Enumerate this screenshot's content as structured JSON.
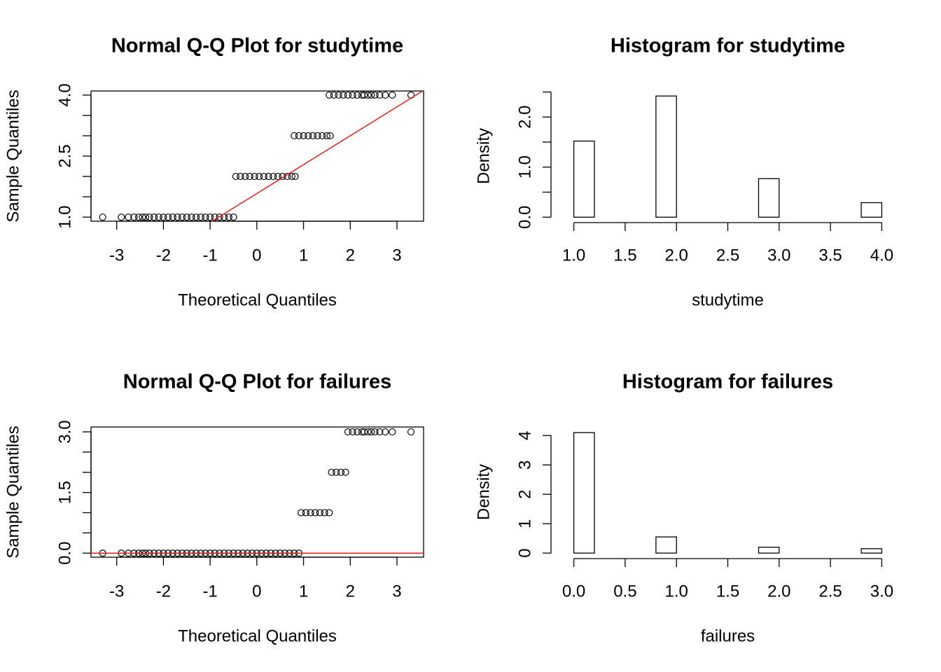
{
  "chart_data": [
    {
      "type": "qq",
      "title": "Normal Q-Q Plot for  studytime",
      "xlabel": "Theoretical Quantiles",
      "ylabel": "Sample Quantiles",
      "color": "#000000",
      "x": [
        -3.3,
        -2.9,
        -2.75,
        -2.63,
        -2.53,
        -2.45,
        -2.38,
        -2.3,
        -2.2,
        -2.1,
        -2.0,
        -1.9,
        -1.8,
        -1.7,
        -1.6,
        -1.5,
        -1.4,
        -1.3,
        -1.2,
        -1.1,
        -1.0,
        -0.9,
        -0.8,
        -0.7,
        -0.6,
        -0.5,
        -0.45,
        -0.35,
        -0.25,
        -0.15,
        -0.05,
        0.05,
        0.15,
        0.25,
        0.35,
        0.45,
        0.55,
        0.65,
        0.75,
        0.82,
        0.8,
        0.9,
        1.0,
        1.1,
        1.2,
        1.3,
        1.4,
        1.5,
        1.57,
        1.55,
        1.65,
        1.75,
        1.85,
        1.95,
        2.05,
        2.15,
        2.25,
        2.3,
        2.38,
        2.45,
        2.53,
        2.63,
        2.75,
        2.9,
        3.3
      ],
      "values": [
        1,
        1,
        1,
        1,
        1,
        1,
        1,
        1,
        1,
        1,
        1,
        1,
        1,
        1,
        1,
        1,
        1,
        1,
        1,
        1,
        1,
        1,
        1,
        1,
        1,
        1,
        2,
        2,
        2,
        2,
        2,
        2,
        2,
        2,
        2,
        2,
        2,
        2,
        2,
        2,
        3,
        3,
        3,
        3,
        3,
        3,
        3,
        3,
        3,
        4,
        4,
        4,
        4,
        4,
        4,
        4,
        4,
        4,
        4,
        4,
        4,
        4,
        4,
        4,
        4
      ],
      "qq_line": {
        "intercept": 1.58,
        "slope": 0.71,
        "color": "#dd2020"
      },
      "xlim": [
        -3.55,
        3.57
      ],
      "ylim": [
        0.9,
        4.1
      ],
      "xticks": [
        -3,
        -2,
        -1,
        0,
        1,
        2,
        3
      ],
      "yticks": [
        {
          "value": 1,
          "label": "1.0"
        },
        {
          "value": 1.5,
          "label": null
        },
        {
          "value": 2,
          "label": null
        },
        {
          "value": 2.5,
          "label": "2.5"
        },
        {
          "value": 3,
          "label": null
        },
        {
          "value": 3.5,
          "label": null
        },
        {
          "value": 4,
          "label": "4.0"
        }
      ]
    },
    {
      "type": "histogram",
      "title": "Histogram for  studytime",
      "xlabel": "studytime",
      "ylabel": "Density",
      "color": "#000000",
      "bins": [
        1.0,
        1.2,
        1.4,
        1.6,
        1.8,
        2.0,
        2.2,
        2.4,
        2.6,
        2.8,
        3.0,
        3.2,
        3.4,
        3.6,
        3.8,
        4.0
      ],
      "values": [
        1.52,
        0,
        0,
        0,
        2.42,
        0,
        0,
        0,
        0,
        0.77,
        0,
        0,
        0,
        0,
        0.29
      ],
      "xlim": [
        0.88,
        4.12
      ],
      "ylim": [
        -0.08,
        2.52
      ],
      "xticks": [
        {
          "value": 1,
          "label": "1.0"
        },
        1.5,
        {
          "value": 2,
          "label": "2.0"
        },
        2.5,
        {
          "value": 3,
          "label": "3.0"
        },
        3.5,
        {
          "value": 4,
          "label": "4.0"
        }
      ],
      "yticks": [
        {
          "value": 0,
          "label": "0.0"
        },
        {
          "value": 0.5,
          "label": null
        },
        {
          "value": 1,
          "label": "1.0"
        },
        {
          "value": 1.5,
          "label": null
        },
        {
          "value": 2,
          "label": "2.0"
        },
        {
          "value": 2.5,
          "label": null
        }
      ]
    },
    {
      "type": "qq",
      "title": "Normal Q-Q Plot for  failures",
      "xlabel": "Theoretical Quantiles",
      "ylabel": "Sample Quantiles",
      "color": "#000000",
      "x": [
        -3.3,
        -2.9,
        -2.75,
        -2.63,
        -2.53,
        -2.45,
        -2.38,
        -2.3,
        -2.2,
        -2.1,
        -2.0,
        -1.9,
        -1.8,
        -1.7,
        -1.6,
        -1.5,
        -1.4,
        -1.3,
        -1.2,
        -1.1,
        -1.0,
        -0.9,
        -0.8,
        -0.7,
        -0.6,
        -0.5,
        -0.4,
        -0.3,
        -0.2,
        -0.1,
        0,
        0.1,
        0.2,
        0.3,
        0.4,
        0.5,
        0.6,
        0.7,
        0.8,
        0.9,
        0.95,
        1.05,
        1.15,
        1.25,
        1.35,
        1.45,
        1.55,
        1.6,
        1.7,
        1.8,
        1.9,
        1.95,
        2.05,
        2.15,
        2.25,
        2.3,
        2.38,
        2.45,
        2.53,
        2.63,
        2.75,
        2.9,
        3.3
      ],
      "values": [
        0,
        0,
        0,
        0,
        0,
        0,
        0,
        0,
        0,
        0,
        0,
        0,
        0,
        0,
        0,
        0,
        0,
        0,
        0,
        0,
        0,
        0,
        0,
        0,
        0,
        0,
        0,
        0,
        0,
        0,
        0,
        0,
        0,
        0,
        0,
        0,
        0,
        0,
        0,
        0,
        1,
        1,
        1,
        1,
        1,
        1,
        1,
        2,
        2,
        2,
        2,
        3,
        3,
        3,
        3,
        3,
        3,
        3,
        3,
        3,
        3,
        3,
        3
      ],
      "qq_line": {
        "intercept": 0,
        "slope": 0,
        "color": "#dd2020"
      },
      "xlim": [
        -3.55,
        3.57
      ],
      "ylim": [
        -0.1,
        3.12
      ],
      "xticks": [
        -3,
        -2,
        -1,
        0,
        1,
        2,
        3
      ],
      "yticks": [
        {
          "value": 0,
          "label": "0.0"
        },
        {
          "value": 0.5,
          "label": null
        },
        {
          "value": 1,
          "label": null
        },
        {
          "value": 1.5,
          "label": "1.5"
        },
        {
          "value": 2,
          "label": null
        },
        {
          "value": 2.5,
          "label": null
        },
        {
          "value": 3,
          "label": "3.0"
        }
      ]
    },
    {
      "type": "histogram",
      "title": "Histogram for  failures",
      "xlabel": "failures",
      "ylabel": "Density",
      "color": "#000000",
      "bins": [
        0.0,
        0.2,
        0.4,
        0.6,
        0.8,
        1.0,
        1.2,
        1.4,
        1.6,
        1.8,
        2.0,
        2.2,
        2.4,
        2.6,
        2.8,
        3.0
      ],
      "values": [
        4.1,
        0,
        0,
        0,
        0.55,
        0,
        0,
        0,
        0,
        0.2,
        0,
        0,
        0,
        0,
        0.15
      ],
      "xlim": [
        -0.12,
        3.12
      ],
      "ylim": [
        -0.14,
        4.29
      ],
      "xticks": [
        {
          "value": 0,
          "label": "0.0"
        },
        0.5,
        {
          "value": 1,
          "label": "1.0"
        },
        1.5,
        {
          "value": 2,
          "label": "2.0"
        },
        2.5,
        {
          "value": 3,
          "label": "3.0"
        }
      ],
      "yticks": [
        0,
        1,
        2,
        3,
        4
      ]
    }
  ]
}
